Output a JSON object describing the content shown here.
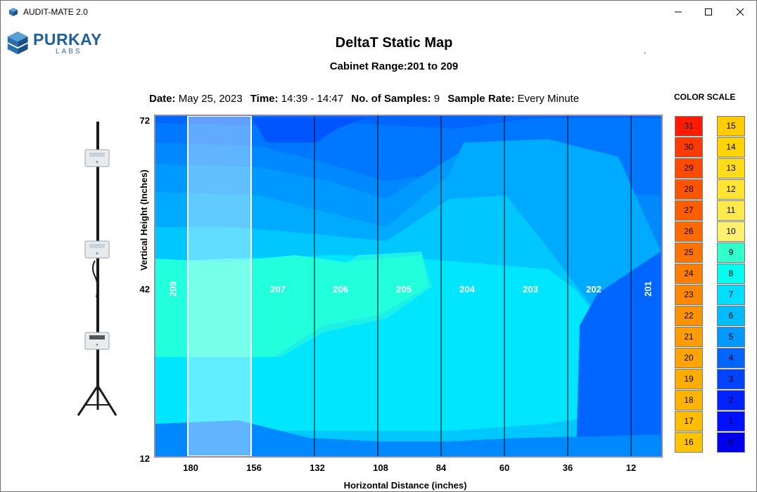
{
  "window": {
    "title": "AUDIT-MATE 2.0"
  },
  "brand": {
    "name": "PURKAY",
    "sub": "LABS"
  },
  "header": {
    "title": "DeltaT Static Map",
    "dot": ".",
    "subtitle": "Cabinet Range:201 to 209"
  },
  "info": {
    "date_label": "Date:",
    "date_value": "May 25, 2023",
    "time_label": "Time:",
    "time_value": "14:39 - 14:47",
    "samples_label": "No. of Samples:",
    "samples_value": "9",
    "rate_label": "Sample Rate:",
    "rate_value": "Every Minute"
  },
  "axes": {
    "y_label": "Vertical Height (Inches)",
    "x_label": "Horizontal Distance (inches)",
    "y_ticks": [
      "72",
      "42",
      "12"
    ],
    "x_ticks": [
      "180",
      "156",
      "132",
      "108",
      "84",
      "60",
      "36",
      "12"
    ]
  },
  "cabinets": [
    "209",
    "207",
    "206",
    "205",
    "204",
    "203",
    "202",
    "201"
  ],
  "color_scale": {
    "title": "COLOR SCALE",
    "hot": [
      {
        "value": "31",
        "color": "#ff1a00"
      },
      {
        "value": "30",
        "color": "#ff3a00"
      },
      {
        "value": "29",
        "color": "#ff4a00"
      },
      {
        "value": "28",
        "color": "#ff5400"
      },
      {
        "value": "27",
        "color": "#ff5e00"
      },
      {
        "value": "26",
        "color": "#ff6a00"
      },
      {
        "value": "25",
        "color": "#ff7400"
      },
      {
        "value": "24",
        "color": "#ff7e00"
      },
      {
        "value": "23",
        "color": "#ff8800"
      },
      {
        "value": "22",
        "color": "#ff9200"
      },
      {
        "value": "21",
        "color": "#ff9c00"
      },
      {
        "value": "20",
        "color": "#ffa400"
      },
      {
        "value": "19",
        "color": "#ffae00"
      },
      {
        "value": "18",
        "color": "#ffb400"
      },
      {
        "value": "17",
        "color": "#ffbc00"
      },
      {
        "value": "16",
        "color": "#ffc400"
      }
    ],
    "cool": [
      {
        "value": "15",
        "color": "#ffcc00"
      },
      {
        "value": "14",
        "color": "#ffd400"
      },
      {
        "value": "13",
        "color": "#ffdc1a"
      },
      {
        "value": "12",
        "color": "#ffe433"
      },
      {
        "value": "11",
        "color": "#ffea4d"
      },
      {
        "value": "10",
        "color": "#fff070"
      },
      {
        "value": "9",
        "color": "#33ffcc"
      },
      {
        "value": "8",
        "color": "#00ffee"
      },
      {
        "value": "7",
        "color": "#00ddff"
      },
      {
        "value": "6",
        "color": "#00bbff"
      },
      {
        "value": "5",
        "color": "#0099ff"
      },
      {
        "value": "4",
        "color": "#0066ff"
      },
      {
        "value": "3",
        "color": "#0044ff"
      },
      {
        "value": "2",
        "color": "#0022ff"
      },
      {
        "value": "1",
        "color": "#0011ff"
      },
      {
        "value": "0",
        "color": "#0000ee"
      }
    ]
  }
}
